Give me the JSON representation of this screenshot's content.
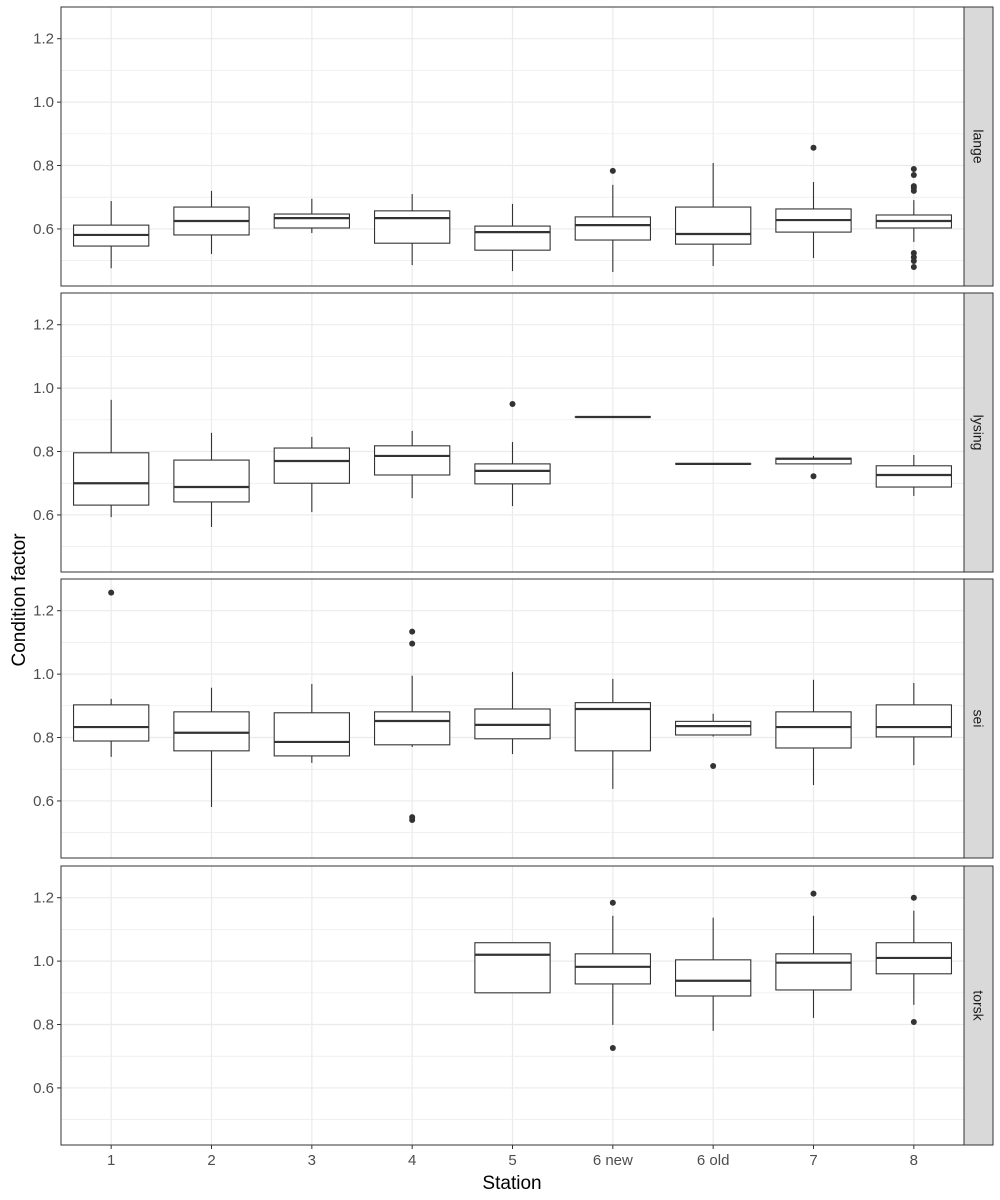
{
  "chart_data": {
    "type": "boxplot",
    "xlabel": "Station",
    "ylabel": "Condition factor",
    "categories": [
      "1",
      "2",
      "3",
      "4",
      "5",
      "6 new",
      "6 old",
      "7",
      "8"
    ],
    "ylim": [
      0.42,
      1.3
    ],
    "yticks": [
      0.6,
      0.8,
      1.0,
      1.2
    ],
    "grid": true,
    "facets": [
      {
        "name": "lange",
        "boxes": [
          {
            "x": "1",
            "min": 0.476,
            "q1": 0.546,
            "median": 0.581,
            "q3": 0.612,
            "max": 0.688,
            "outliers": []
          },
          {
            "x": "2",
            "min": 0.521,
            "q1": 0.581,
            "median": 0.625,
            "q3": 0.669,
            "max": 0.72,
            "outliers": []
          },
          {
            "x": "3",
            "min": 0.587,
            "q1": 0.603,
            "median": 0.634,
            "q3": 0.647,
            "max": 0.695,
            "outliers": []
          },
          {
            "x": "4",
            "min": 0.486,
            "q1": 0.555,
            "median": 0.634,
            "q3": 0.657,
            "max": 0.71,
            "outliers": []
          },
          {
            "x": "5",
            "min": 0.467,
            "q1": 0.533,
            "median": 0.59,
            "q3": 0.609,
            "max": 0.679,
            "outliers": []
          },
          {
            "x": "6 new",
            "min": 0.464,
            "q1": 0.565,
            "median": 0.612,
            "q3": 0.638,
            "max": 0.739,
            "outliers": [
              0.783
            ]
          },
          {
            "x": "6 old",
            "min": 0.483,
            "q1": 0.552,
            "median": 0.584,
            "q3": 0.669,
            "max": 0.808,
            "outliers": []
          },
          {
            "x": "7",
            "min": 0.508,
            "q1": 0.59,
            "median": 0.628,
            "q3": 0.663,
            "max": 0.748,
            "outliers": [
              0.856
            ]
          },
          {
            "x": "8",
            "min": 0.559,
            "q1": 0.603,
            "median": 0.625,
            "q3": 0.644,
            "max": 0.691,
            "outliers": [
              0.789,
              0.77,
              0.735,
              0.729,
              0.72,
              0.524,
              0.511,
              0.499,
              0.48
            ]
          }
        ]
      },
      {
        "name": "lysing",
        "boxes": [
          {
            "x": "1",
            "min": 0.593,
            "q1": 0.631,
            "median": 0.7,
            "q3": 0.796,
            "max": 0.963,
            "outliers": []
          },
          {
            "x": "2",
            "min": 0.562,
            "q1": 0.641,
            "median": 0.688,
            "q3": 0.773,
            "max": 0.859,
            "outliers": []
          },
          {
            "x": "3",
            "min": 0.609,
            "q1": 0.7,
            "median": 0.77,
            "q3": 0.811,
            "max": 0.846,
            "outliers": []
          },
          {
            "x": "4",
            "min": 0.653,
            "q1": 0.726,
            "median": 0.786,
            "q3": 0.818,
            "max": 0.865,
            "outliers": []
          },
          {
            "x": "5",
            "min": 0.628,
            "q1": 0.698,
            "median": 0.739,
            "q3": 0.761,
            "max": 0.83,
            "outliers": [
              0.95
            ]
          },
          {
            "x": "6 new",
            "min": 0.909,
            "q1": 0.909,
            "median": 0.909,
            "q3": 0.909,
            "max": 0.909,
            "outliers": []
          },
          {
            "x": "6 old",
            "min": 0.761,
            "q1": 0.761,
            "median": 0.761,
            "q3": 0.761,
            "max": 0.761,
            "outliers": []
          },
          {
            "x": "7",
            "min": 0.761,
            "q1": 0.761,
            "median": 0.777,
            "q3": 0.779,
            "max": 0.786,
            "outliers": [
              0.722
            ]
          },
          {
            "x": "8",
            "min": 0.66,
            "q1": 0.688,
            "median": 0.726,
            "q3": 0.755,
            "max": 0.789,
            "outliers": []
          }
        ]
      },
      {
        "name": "sei",
        "boxes": [
          {
            "x": "1",
            "min": 0.739,
            "q1": 0.789,
            "median": 0.833,
            "q3": 0.903,
            "max": 0.922,
            "outliers": [
              1.257
            ]
          },
          {
            "x": "2",
            "min": 0.581,
            "q1": 0.758,
            "median": 0.815,
            "q3": 0.881,
            "max": 0.957,
            "outliers": []
          },
          {
            "x": "3",
            "min": 0.72,
            "q1": 0.742,
            "median": 0.786,
            "q3": 0.878,
            "max": 0.969,
            "outliers": []
          },
          {
            "x": "4",
            "min": 0.77,
            "q1": 0.777,
            "median": 0.852,
            "q3": 0.881,
            "max": 0.995,
            "outliers": [
              1.134,
              1.096,
              0.549,
              0.54
            ]
          },
          {
            "x": "5",
            "min": 0.748,
            "q1": 0.796,
            "median": 0.84,
            "q3": 0.89,
            "max": 1.007,
            "outliers": []
          },
          {
            "x": "6 new",
            "min": 0.638,
            "q1": 0.758,
            "median": 0.89,
            "q3": 0.91,
            "max": 0.985,
            "outliers": []
          },
          {
            "x": "6 old",
            "min": 0.803,
            "q1": 0.808,
            "median": 0.836,
            "q3": 0.851,
            "max": 0.875,
            "outliers": [
              0.71
            ]
          },
          {
            "x": "7",
            "min": 0.65,
            "q1": 0.767,
            "median": 0.833,
            "q3": 0.881,
            "max": 0.982,
            "outliers": []
          },
          {
            "x": "8",
            "min": 0.713,
            "q1": 0.802,
            "median": 0.833,
            "q3": 0.903,
            "max": 0.972,
            "outliers": []
          }
        ]
      },
      {
        "name": "torsk",
        "boxes": [
          {
            "x": "5",
            "min": 0.9,
            "q1": 0.9,
            "median": 1.02,
            "q3": 1.058,
            "max": 1.058,
            "outliers": []
          },
          {
            "x": "6 new",
            "min": 0.799,
            "q1": 0.928,
            "median": 0.982,
            "q3": 1.023,
            "max": 1.143,
            "outliers": [
              1.184,
              0.726
            ]
          },
          {
            "x": "6 old",
            "min": 0.78,
            "q1": 0.89,
            "median": 0.938,
            "q3": 1.004,
            "max": 1.137,
            "outliers": []
          },
          {
            "x": "7",
            "min": 0.821,
            "q1": 0.909,
            "median": 0.995,
            "q3": 1.023,
            "max": 1.143,
            "outliers": [
              1.213
            ]
          },
          {
            "x": "8",
            "min": 0.862,
            "q1": 0.96,
            "median": 1.01,
            "q3": 1.058,
            "max": 1.159,
            "outliers": [
              1.2,
              0.808
            ]
          }
        ]
      }
    ]
  },
  "colors": {
    "box_line": "#333333",
    "grid": "#EBEBEB",
    "strip": "#D9D9D9",
    "panel_border": "#333333"
  }
}
